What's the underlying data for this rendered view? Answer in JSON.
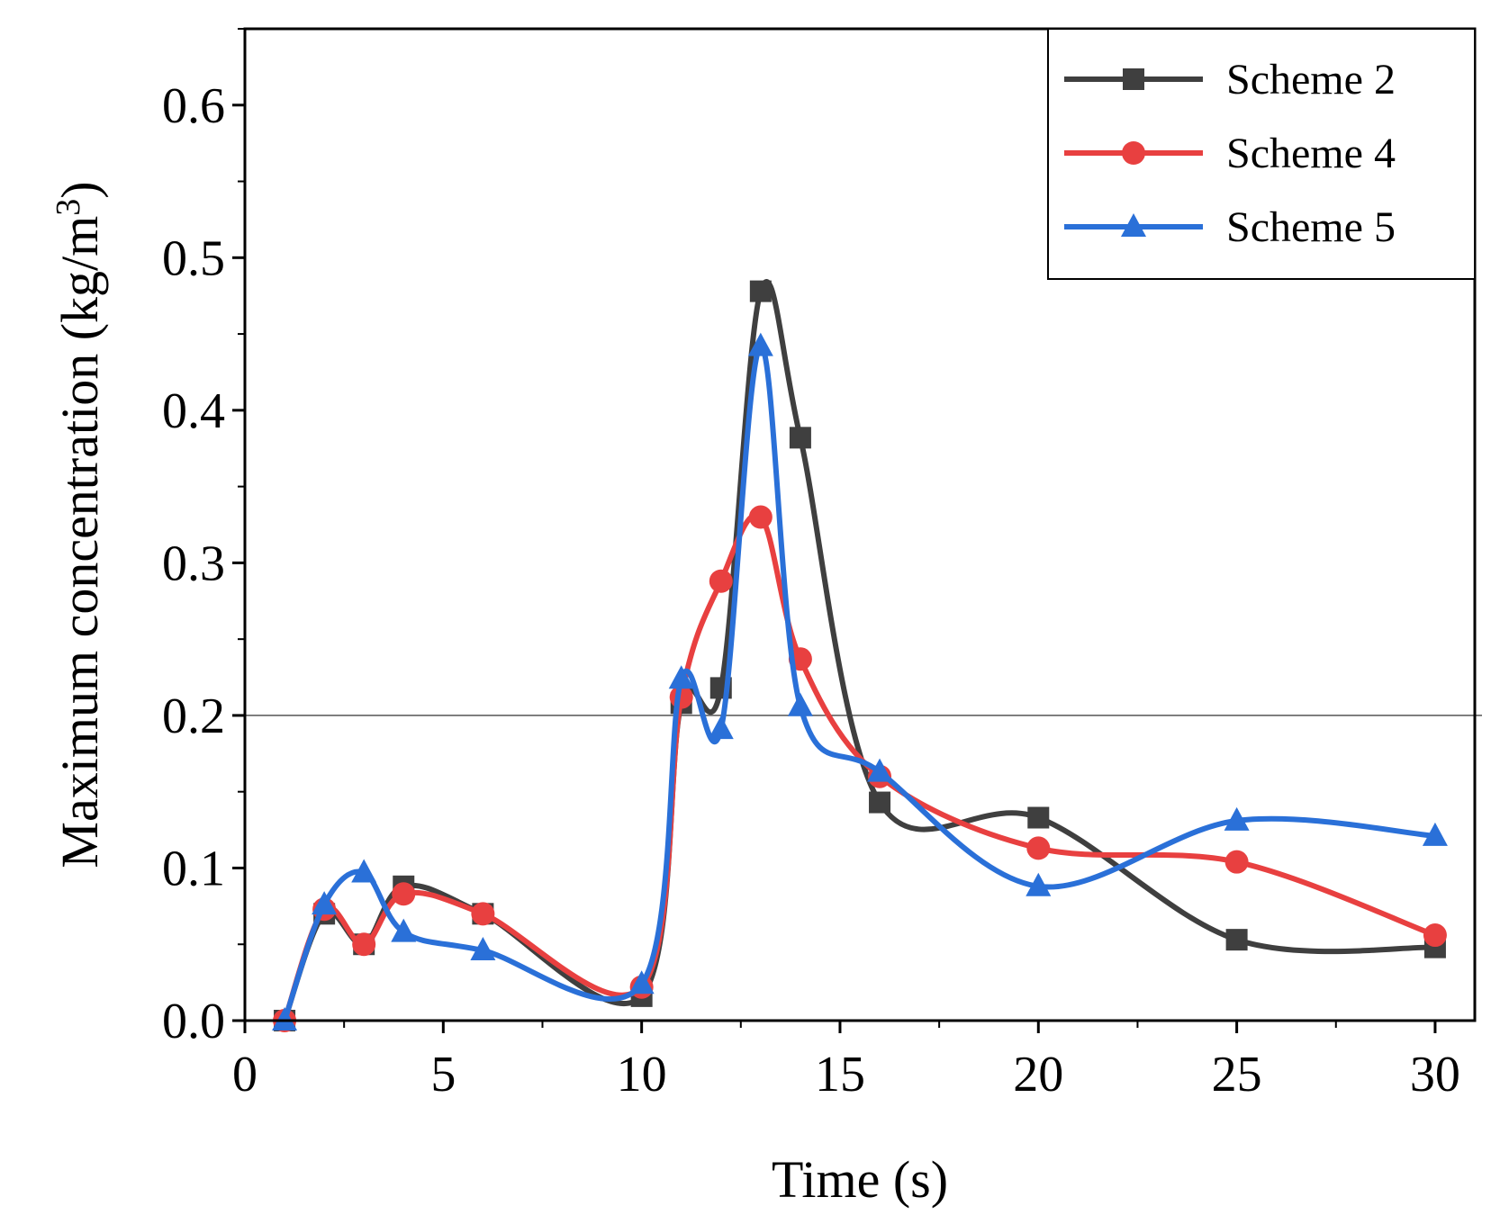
{
  "chart_data": {
    "type": "line",
    "title": "",
    "xlabel": "Time (s)",
    "ylabel_main": "Maximum concentration (kg/m",
    "ylabel_sup": "3",
    "ylabel_close": ")",
    "xlim": [
      0,
      31
    ],
    "ylim": [
      0,
      0.65
    ],
    "xticks": [
      0,
      5,
      10,
      15,
      20,
      25,
      30
    ],
    "yticks": [
      0.0,
      0.1,
      0.2,
      0.3,
      0.4,
      0.5,
      0.6
    ],
    "xtick_labels": [
      "0",
      "5",
      "10",
      "15",
      "20",
      "25",
      "30"
    ],
    "ytick_labels": [
      "0.0",
      "0.1",
      "0.2",
      "0.3",
      "0.4",
      "0.5",
      "0.6"
    ],
    "reference_line_y": 0.2,
    "legend_position": "top-right",
    "x": [
      1,
      2,
      3,
      4,
      6,
      10,
      11,
      12,
      13,
      14,
      16,
      20,
      25,
      30
    ],
    "series": [
      {
        "name": "Scheme 2",
        "color": "#3f3f3f",
        "marker": "square",
        "values": [
          0.0,
          0.07,
          0.05,
          0.088,
          0.07,
          0.016,
          0.208,
          0.218,
          0.478,
          0.382,
          0.143,
          0.133,
          0.053,
          0.048
        ]
      },
      {
        "name": "Scheme 4",
        "color": "#e84040",
        "marker": "circle",
        "values": [
          0.0,
          0.073,
          0.05,
          0.083,
          0.07,
          0.022,
          0.212,
          0.288,
          0.33,
          0.237,
          0.16,
          0.113,
          0.104,
          0.056
        ]
      },
      {
        "name": "Scheme 5",
        "color": "#2a70d8",
        "marker": "triangle",
        "values": [
          0.0,
          0.076,
          0.097,
          0.058,
          0.046,
          0.024,
          0.224,
          0.191,
          0.442,
          0.206,
          0.163,
          0.088,
          0.131,
          0.121
        ]
      }
    ]
  }
}
